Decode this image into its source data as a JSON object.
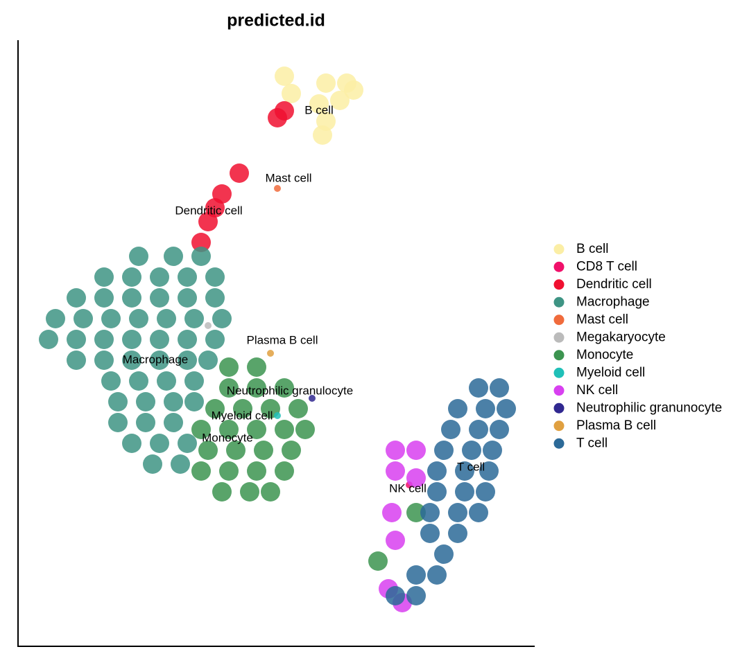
{
  "chart_data": {
    "type": "scatter",
    "title": "predicted.id",
    "xlim": [
      0,
      74.4
    ],
    "ylim": [
      0,
      87.5
    ],
    "legend": "right",
    "series": [
      {
        "name": "B cell",
        "color": "#fbeea5",
        "x": [
          38.4,
          39.4,
          44.4,
          47.4,
          46.4,
          43.4,
          44.4,
          43.9,
          48.4
        ],
        "y": [
          82.3,
          79.8,
          81.3,
          81.3,
          78.8,
          78.3,
          75.8,
          73.8,
          80.3
        ]
      },
      {
        "name": "CD8 T cell",
        "color": "#f0106a",
        "x": [
          56.4
        ],
        "y": [
          23.3
        ]
      },
      {
        "name": "Dendritic cell",
        "color": "#f01030",
        "x": [
          29.4,
          28.4,
          27.4,
          26.4,
          38.4,
          37.4,
          31.9
        ],
        "y": [
          65.3,
          63.3,
          61.3,
          58.3,
          77.3,
          76.3,
          68.3
        ]
      },
      {
        "name": "Macrophage",
        "color": "#3e9484",
        "x": [
          17.4,
          22.4,
          26.4,
          12.4,
          16.4,
          20.4,
          24.4,
          28.4,
          8.4,
          12.4,
          16.4,
          20.4,
          24.4,
          28.4,
          5.4,
          9.4,
          13.4,
          17.4,
          21.4,
          25.4,
          29.4,
          4.4,
          8.4,
          12.4,
          16.4,
          20.4,
          24.4,
          28.4,
          8.4,
          12.4,
          16.4,
          20.4,
          24.4,
          27.4,
          13.4,
          17.4,
          21.4,
          25.4,
          14.4,
          18.4,
          22.4,
          25.4,
          14.4,
          18.4,
          22.4,
          16.4,
          20.4,
          24.4,
          19.4,
          23.4
        ],
        "y": [
          56.3,
          56.3,
          56.3,
          53.3,
          53.3,
          53.3,
          53.3,
          53.3,
          50.3,
          50.3,
          50.3,
          50.3,
          50.3,
          50.3,
          47.3,
          47.3,
          47.3,
          47.3,
          47.3,
          47.3,
          47.3,
          44.3,
          44.3,
          44.3,
          44.3,
          44.3,
          44.3,
          44.3,
          41.3,
          41.3,
          41.3,
          41.3,
          41.3,
          41.3,
          38.3,
          38.3,
          38.3,
          38.3,
          35.3,
          35.3,
          35.3,
          35.3,
          32.3,
          32.3,
          32.3,
          29.3,
          29.3,
          29.3,
          26.3,
          26.3
        ]
      },
      {
        "name": "Mast cell",
        "color": "#f06b3c",
        "x": [
          37.4
        ],
        "y": [
          66.1
        ]
      },
      {
        "name": "Megakaryocyte",
        "color": "#bbbbbb",
        "x": [
          27.4
        ],
        "y": [
          46.3
        ]
      },
      {
        "name": "Monocyte",
        "color": "#3c9450",
        "x": [
          30.4,
          34.4,
          30.4,
          34.4,
          38.4,
          28.4,
          32.4,
          36.4,
          40.4,
          26.4,
          30.4,
          34.4,
          38.4,
          41.4,
          27.4,
          31.4,
          35.4,
          39.4,
          26.4,
          30.4,
          34.4,
          38.4,
          29.4,
          33.4,
          36.4,
          57.4,
          51.9
        ],
        "y": [
          40.3,
          40.3,
          37.3,
          37.3,
          37.3,
          34.3,
          34.3,
          34.3,
          34.3,
          31.3,
          31.3,
          31.3,
          31.3,
          31.3,
          28.3,
          28.3,
          28.3,
          28.3,
          25.3,
          25.3,
          25.3,
          25.3,
          22.3,
          22.3,
          22.3,
          19.3,
          12.3
        ]
      },
      {
        "name": "Myeloid cell",
        "color": "#20c0b8",
        "x": [
          37.4
        ],
        "y": [
          33.3
        ]
      },
      {
        "name": "NK cell",
        "color": "#d840f0",
        "x": [
          54.4,
          57.4,
          54.4,
          57.4,
          53.9,
          54.4,
          53.4,
          55.4
        ],
        "y": [
          28.3,
          28.3,
          25.3,
          24.3,
          19.3,
          15.3,
          8.3,
          6.3
        ]
      },
      {
        "name": "Neutrophilic granunocyte",
        "color": "#302890",
        "x": [
          42.4
        ],
        "y": [
          35.8
        ]
      },
      {
        "name": "Plasma B cell",
        "color": "#e0a040",
        "x": [
          36.4
        ],
        "y": [
          42.3
        ]
      },
      {
        "name": "T cell",
        "color": "#2c6a98",
        "x": [
          66.4,
          69.4,
          63.4,
          67.4,
          70.4,
          62.4,
          66.4,
          69.4,
          61.4,
          65.4,
          68.4,
          60.4,
          64.4,
          67.9,
          60.4,
          64.4,
          67.4,
          59.4,
          63.4,
          66.4,
          59.4,
          63.4,
          61.4,
          57.4,
          60.4,
          54.4,
          57.4
        ],
        "y": [
          37.3,
          37.3,
          34.3,
          34.3,
          34.3,
          31.3,
          31.3,
          31.3,
          28.3,
          28.3,
          28.3,
          25.3,
          25.3,
          25.3,
          22.3,
          22.3,
          22.3,
          19.3,
          19.3,
          19.3,
          16.3,
          16.3,
          13.3,
          10.3,
          10.3,
          7.3,
          7.3
        ]
      }
    ],
    "annotations": [
      {
        "text": "B cell",
        "x": 43.4,
        "y": 77.3
      },
      {
        "text": "Mast cell",
        "x": 39.0,
        "y": 67.5
      },
      {
        "text": "Dendritic cell",
        "x": 27.5,
        "y": 62.8
      },
      {
        "text": "Plasma B cell",
        "x": 38.1,
        "y": 44.1
      },
      {
        "text": "Macrophage",
        "x": 19.8,
        "y": 41.3
      },
      {
        "text": "Neutrophilic granulocyte",
        "x": 39.2,
        "y": 36.8
      },
      {
        "text": "Myeloid cell",
        "x": 32.3,
        "y": 33.2
      },
      {
        "text": "Monocyte",
        "x": 30.2,
        "y": 30.0
      },
      {
        "text": "T cell",
        "x": 65.3,
        "y": 25.8
      },
      {
        "text": "NK cell",
        "x": 56.2,
        "y": 22.7
      }
    ]
  }
}
